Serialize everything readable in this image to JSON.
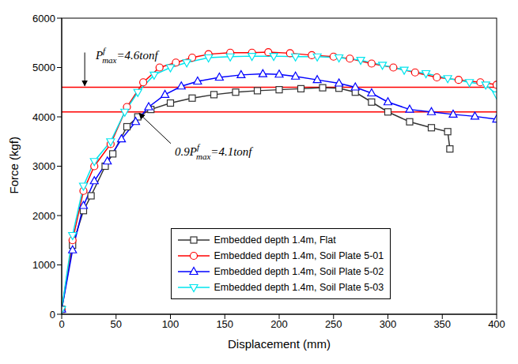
{
  "chart_data": {
    "type": "line",
    "x_label": "Displacement (mm)",
    "y_label": "Force (kgf)",
    "xlim": [
      0,
      400
    ],
    "xticks": [
      0,
      50,
      100,
      150,
      200,
      250,
      300,
      350,
      400
    ],
    "ylim": [
      0,
      6000
    ],
    "yticks": [
      0,
      1000,
      2000,
      3000,
      4000,
      5000,
      6000
    ],
    "grid": false,
    "legend": "lower right",
    "series": [
      {
        "name": "Embedded depth 1.4m, Flat",
        "color": "#333333",
        "marker": "square",
        "x": [
          0,
          10,
          20,
          27,
          40,
          47,
          60,
          70,
          82,
          100,
          120,
          140,
          160,
          180,
          200,
          220,
          240,
          255,
          270,
          285,
          300,
          320,
          340,
          355,
          357
        ],
        "values": [
          100,
          1400,
          2100,
          2400,
          3000,
          3250,
          3800,
          4000,
          4150,
          4280,
          4380,
          4450,
          4500,
          4530,
          4550,
          4570,
          4590,
          4580,
          4500,
          4300,
          4100,
          3900,
          3780,
          3700,
          3350
        ]
      },
      {
        "name": "Embedded depth 1.4m, Soil Plate 5-01",
        "color": "#ff0000",
        "marker": "circle",
        "x": [
          0,
          10,
          20,
          30,
          45,
          60,
          75,
          90,
          105,
          120,
          135,
          155,
          175,
          190,
          210,
          230,
          250,
          265,
          285,
          305,
          325,
          345,
          365,
          385,
          400
        ],
        "values": [
          100,
          1500,
          2500,
          3000,
          3450,
          4200,
          4700,
          5000,
          5100,
          5200,
          5270,
          5300,
          5300,
          5310,
          5290,
          5250,
          5220,
          5180,
          5080,
          5000,
          4900,
          4800,
          4750,
          4700,
          4650
        ]
      },
      {
        "name": "Embedded depth 1.4m, Soil Plate 5-02",
        "color": "#0000ff",
        "marker": "triangle",
        "x": [
          0,
          10,
          20,
          30,
          42,
          55,
          68,
          80,
          95,
          110,
          125,
          145,
          165,
          185,
          200,
          215,
          235,
          255,
          270,
          285,
          300,
          320,
          340,
          360,
          380,
          400
        ],
        "values": [
          100,
          1300,
          2200,
          2700,
          3100,
          3550,
          3900,
          4200,
          4450,
          4620,
          4720,
          4800,
          4850,
          4870,
          4860,
          4820,
          4750,
          4680,
          4600,
          4480,
          4300,
          4150,
          4100,
          4050,
          4010,
          3950
        ]
      },
      {
        "name": "Embedded depth 1.4m, Soil Plate 5-03",
        "color": "#00e5ee",
        "marker": "triangle_down",
        "x": [
          0,
          10,
          20,
          30,
          45,
          58,
          70,
          85,
          100,
          115,
          135,
          155,
          175,
          195,
          215,
          235,
          255,
          275,
          295,
          315,
          335,
          355,
          375,
          390,
          400
        ],
        "values": [
          100,
          1600,
          2600,
          3100,
          3500,
          4100,
          4500,
          4850,
          5000,
          5100,
          5200,
          5220,
          5230,
          5230,
          5220,
          5220,
          5200,
          5150,
          5050,
          4950,
          4880,
          4780,
          4700,
          4650,
          4450
        ]
      }
    ],
    "annotations": [
      {
        "base": "P",
        "sup": "f",
        "sub": "max",
        "text": "=4.6tonf",
        "y": 4600,
        "color": "#ff0000"
      },
      {
        "prefix": "0.9",
        "base": "P",
        "sup": "f",
        "sub": "max",
        "text": "=4.1tonf",
        "y": 4100,
        "color": "#ff0000"
      }
    ]
  }
}
